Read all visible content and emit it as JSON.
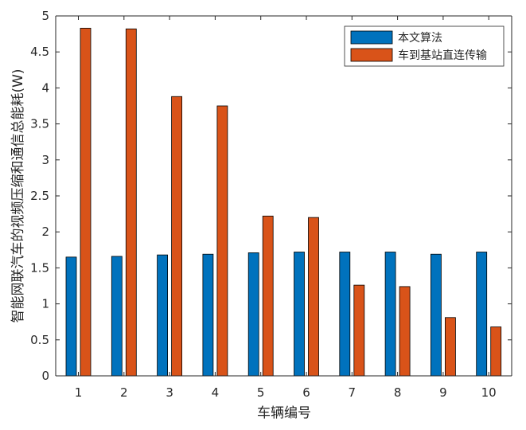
{
  "colors": {
    "series1": "#0072BD",
    "series2": "#D95319",
    "axis": "#262626",
    "background": "#ffffff"
  },
  "chart_data": {
    "type": "bar",
    "categories": [
      "1",
      "2",
      "3",
      "4",
      "5",
      "6",
      "7",
      "8",
      "9",
      "10"
    ],
    "series": [
      {
        "name": "本文算法",
        "values": [
          1.65,
          1.66,
          1.68,
          1.69,
          1.71,
          1.72,
          1.72,
          1.72,
          1.69,
          1.72
        ]
      },
      {
        "name": "车到基站直连传输",
        "values": [
          4.83,
          4.82,
          3.88,
          3.75,
          2.22,
          2.2,
          1.26,
          1.24,
          0.81,
          0.68
        ]
      }
    ],
    "title": "",
    "xlabel": "车辆编号",
    "ylabel": "智能网联汽车的视频压缩和通信总能耗(W)",
    "ylim": [
      0,
      5
    ],
    "yticks": [
      "0",
      "0.5",
      "1",
      "1.5",
      "2",
      "2.5",
      "3",
      "3.5",
      "4",
      "4.5",
      "5"
    ],
    "grid": false,
    "legend_position": "top-right"
  }
}
